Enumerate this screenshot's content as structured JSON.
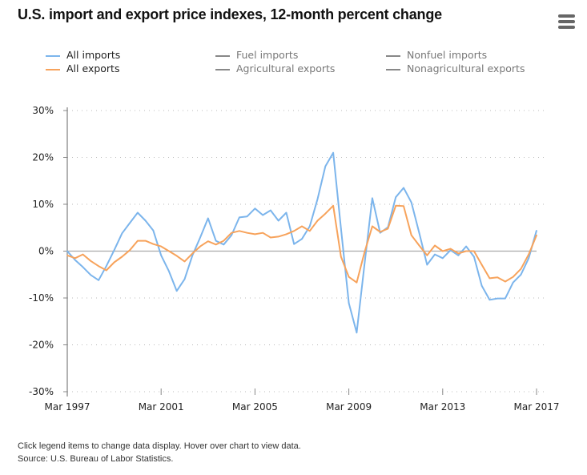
{
  "title": "U.S. import and export price indexes, 12-month percent change",
  "menu_icon": "hamburger-menu-icon",
  "footer": {
    "note": "Click legend items to change data display. Hover over chart to view data.",
    "source": "Source: U.S. Bureau of Labor Statistics."
  },
  "legend": [
    {
      "label": "All imports",
      "color": "#7cb5ec",
      "active": true
    },
    {
      "label": "All exports",
      "color": "#f7a35c",
      "active": true
    },
    {
      "label": "Fuel imports",
      "color": "#888888",
      "active": false
    },
    {
      "label": "Agricultural exports",
      "color": "#888888",
      "active": false
    },
    {
      "label": "Nonfuel imports",
      "color": "#888888",
      "active": false
    },
    {
      "label": "Nonagricultural exports",
      "color": "#888888",
      "active": false
    }
  ],
  "chart_data": {
    "type": "line",
    "title": "U.S. import and export price indexes, 12-month percent change",
    "ylim": [
      -30,
      30
    ],
    "y_ticks": [
      "30%",
      "20%",
      "10%",
      "0%",
      "-10%",
      "-20%",
      "-30%"
    ],
    "y_tick_values": [
      30,
      20,
      10,
      0,
      -10,
      -20,
      -30
    ],
    "x_ticks": [
      "Mar 1997",
      "Mar 2001",
      "Mar 2005",
      "Mar 2009",
      "Mar 2013",
      "Mar 2017"
    ],
    "x_range": [
      "1997-03",
      "2017-03"
    ],
    "grid": "horizontal dotted",
    "legend_position": "top",
    "x": [
      "1997-03",
      "1997-07",
      "1997-11",
      "1998-03",
      "1998-07",
      "1998-11",
      "1999-03",
      "1999-07",
      "1999-11",
      "2000-03",
      "2000-07",
      "2000-11",
      "2001-03",
      "2001-07",
      "2001-11",
      "2002-03",
      "2002-07",
      "2002-11",
      "2003-03",
      "2003-07",
      "2003-11",
      "2004-03",
      "2004-07",
      "2004-11",
      "2005-03",
      "2005-07",
      "2005-11",
      "2006-03",
      "2006-07",
      "2006-11",
      "2007-03",
      "2007-07",
      "2007-11",
      "2008-03",
      "2008-07",
      "2008-11",
      "2009-03",
      "2009-07",
      "2009-11",
      "2010-03",
      "2010-07",
      "2010-11",
      "2011-03",
      "2011-07",
      "2011-11",
      "2012-03",
      "2012-07",
      "2012-11",
      "2013-03",
      "2013-07",
      "2013-11",
      "2014-03",
      "2014-07",
      "2014-11",
      "2015-03",
      "2015-07",
      "2015-11",
      "2016-03",
      "2016-07",
      "2016-11",
      "2017-03"
    ],
    "series": [
      {
        "name": "All imports",
        "color": "#7cb5ec",
        "values": [
          0.0,
          -1.9,
          -3.4,
          -5.1,
          -6.2,
          -3.2,
          0.2,
          3.8,
          6.0,
          8.2,
          6.5,
          4.4,
          -0.9,
          -4.3,
          -8.5,
          -6.0,
          -0.9,
          2.9,
          7.0,
          2.2,
          1.4,
          3.4,
          7.2,
          7.4,
          9.1,
          7.7,
          8.7,
          6.5,
          8.2,
          1.5,
          2.6,
          5.3,
          11.1,
          18.1,
          21.0,
          4.8,
          -11.1,
          -17.4,
          -2.9,
          11.3,
          3.9,
          5.1,
          11.5,
          13.5,
          10.4,
          3.9,
          -2.9,
          -0.7,
          -1.5,
          0.2,
          -0.9,
          1.0,
          -1.2,
          -7.4,
          -10.4,
          -10.1,
          -10.1,
          -6.7,
          -5.0,
          -1.5,
          4.4
        ]
      },
      {
        "name": "All exports",
        "color": "#f7a35c",
        "values": [
          -0.9,
          -1.5,
          -0.7,
          -2.1,
          -3.2,
          -4.1,
          -2.4,
          -1.2,
          0.2,
          2.2,
          2.2,
          1.5,
          1.0,
          0.0,
          -1.0,
          -2.2,
          -0.5,
          1.0,
          2.1,
          1.4,
          2.2,
          3.9,
          4.3,
          3.9,
          3.6,
          3.9,
          2.9,
          3.1,
          3.6,
          4.3,
          5.3,
          4.3,
          6.5,
          8.0,
          9.7,
          -1.2,
          -5.5,
          -6.7,
          -0.3,
          5.3,
          4.1,
          4.8,
          9.7,
          9.6,
          3.4,
          1.2,
          -0.9,
          1.2,
          0.0,
          0.5,
          -0.5,
          0.0,
          0.0,
          -2.9,
          -5.8,
          -5.6,
          -6.5,
          -5.5,
          -3.8,
          -0.7,
          3.4
        ]
      }
    ]
  }
}
